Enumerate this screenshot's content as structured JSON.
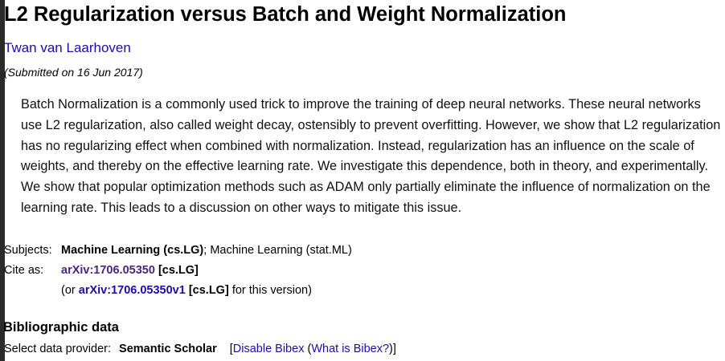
{
  "paper": {
    "title": "L2 Regularization versus Batch and Weight Normalization",
    "author": "Twan van Laarhoven",
    "submitted": "(Submitted on 16 Jun 2017)",
    "abstract": "Batch Normalization is a commonly used trick to improve the training of deep neural networks. These neural networks use L2 regularization, also called weight decay, ostensibly to prevent overfitting. However, we show that L2 regularization has no regularizing effect when combined with normalization. Instead, regularization has an influence on the scale of weights, and thereby on the effective learning rate. We investigate this dependence, both in theory, and experimentally. We show that popular optimization methods such as ADAM only partially eliminate the influence of normalization on the learning rate. This leads to a discussion on other ways to mitigate this issue."
  },
  "metadata": {
    "subjects_label": "Subjects:",
    "subject_primary": "Machine Learning (cs.LG)",
    "subject_separator": ";",
    "subject_secondary": "Machine Learning (stat.ML)",
    "cite_label": "Cite as:",
    "cite_id": "arXiv:1706.05350",
    "cite_category": "[cs.LG]",
    "version_prefix": "(or",
    "version_id": "arXiv:1706.05350v1",
    "version_category": "[cs.LG]",
    "version_suffix": "for this version)"
  },
  "bibliographic": {
    "heading": "Bibliographic data",
    "provider_label": "Select data provider:",
    "provider_name": "Semantic Scholar",
    "open_bracket": "[",
    "disable_link": "Disable Bibex",
    "what_open": "(",
    "what_link": "What is Bibex?",
    "close_bracket": ")]"
  }
}
